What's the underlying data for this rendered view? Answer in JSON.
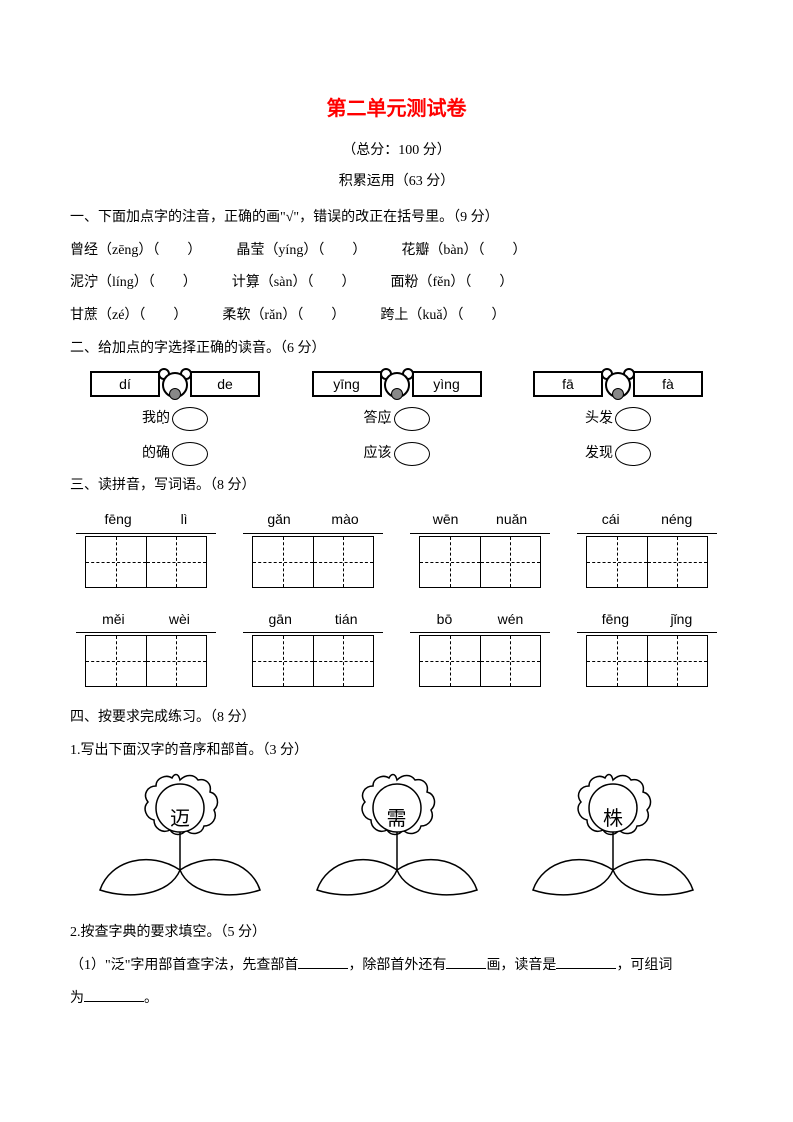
{
  "title": "第二单元测试卷",
  "subtitle": "（总分：100 分）",
  "section_label": "积累运用（63 分）",
  "colors": {
    "title": "#ff0000",
    "text": "#000000",
    "bg": "#ffffff"
  },
  "fonts": {
    "title_size": 20,
    "body_size": 14,
    "title_family": "SimHei",
    "body_family": "SimSun"
  },
  "q1": {
    "prompt": "一、下面加点字的注音，正确的画\"√\"，错误的改正在括号里。（9 分）",
    "rows": [
      [
        {
          "pre": "曾",
          "dot": "经",
          "py": "zēng"
        },
        {
          "pre": "晶",
          "dot": "莹",
          "py": "yíng"
        },
        {
          "pre": "花",
          "dot": "瓣",
          "py": "bàn"
        }
      ],
      [
        {
          "pre": "泥",
          "dot": "泞",
          "py": "líng"
        },
        {
          "pre": "计",
          "dot": "算",
          "py": "sàn"
        },
        {
          "pre": "面",
          "dot": "粉",
          "py": "fěn"
        }
      ],
      [
        {
          "pre": "甘",
          "dot": "蔗",
          "py": "zé"
        },
        {
          "pre": "柔",
          "dot": "软",
          "py": "rǎn"
        },
        {
          "pre": "跨",
          "dot": "上",
          "py": "kuǎ"
        }
      ]
    ]
  },
  "q2": {
    "prompt": "二、给加点的字选择正确的读音。（6 分）",
    "items": [
      {
        "left": "dí",
        "right": "de",
        "w1_pre": "我",
        "w1_dot": "的",
        "w2_dot": "的",
        "w2_post": "确"
      },
      {
        "left": "yīng",
        "right": "yìng",
        "w1_pre": "答",
        "w1_dot": "应",
        "w2_dot": "应",
        "w2_post": "该"
      },
      {
        "left": "fā",
        "right": "fà",
        "w1_pre": "头",
        "w1_dot": "发",
        "w2_dot": "发",
        "w2_post": "现"
      }
    ]
  },
  "q3": {
    "prompt": "三、读拼音，写词语。（8 分）",
    "rows": [
      [
        {
          "p1": "fēng",
          "p2": "lì"
        },
        {
          "p1": "gǎn",
          "p2": "mào"
        },
        {
          "p1": "wēn",
          "p2": "nuǎn"
        },
        {
          "p1": "cái",
          "p2": "néng"
        }
      ],
      [
        {
          "p1": "měi",
          "p2": "wèi"
        },
        {
          "p1": "gān",
          "p2": "tián"
        },
        {
          "p1": "bō",
          "p2": "wén"
        },
        {
          "p1": "fēng",
          "p2": "jǐng"
        }
      ]
    ]
  },
  "q4": {
    "prompt": "四、按要求完成练习。（8 分）",
    "sub1": "1.写出下面汉字的音序和部首。（3 分）",
    "chars": [
      "迈",
      "需",
      "株"
    ],
    "sub2": "2.按查字典的要求填空。（5 分）",
    "fill_text_1": "（1）\"泛\"字用部首查字法，先查部首",
    "fill_text_2": "，除部首外还有",
    "fill_text_3": "画，读音是",
    "fill_text_4": "，可组词",
    "fill_text_5": "为",
    "fill_text_6": "。"
  }
}
